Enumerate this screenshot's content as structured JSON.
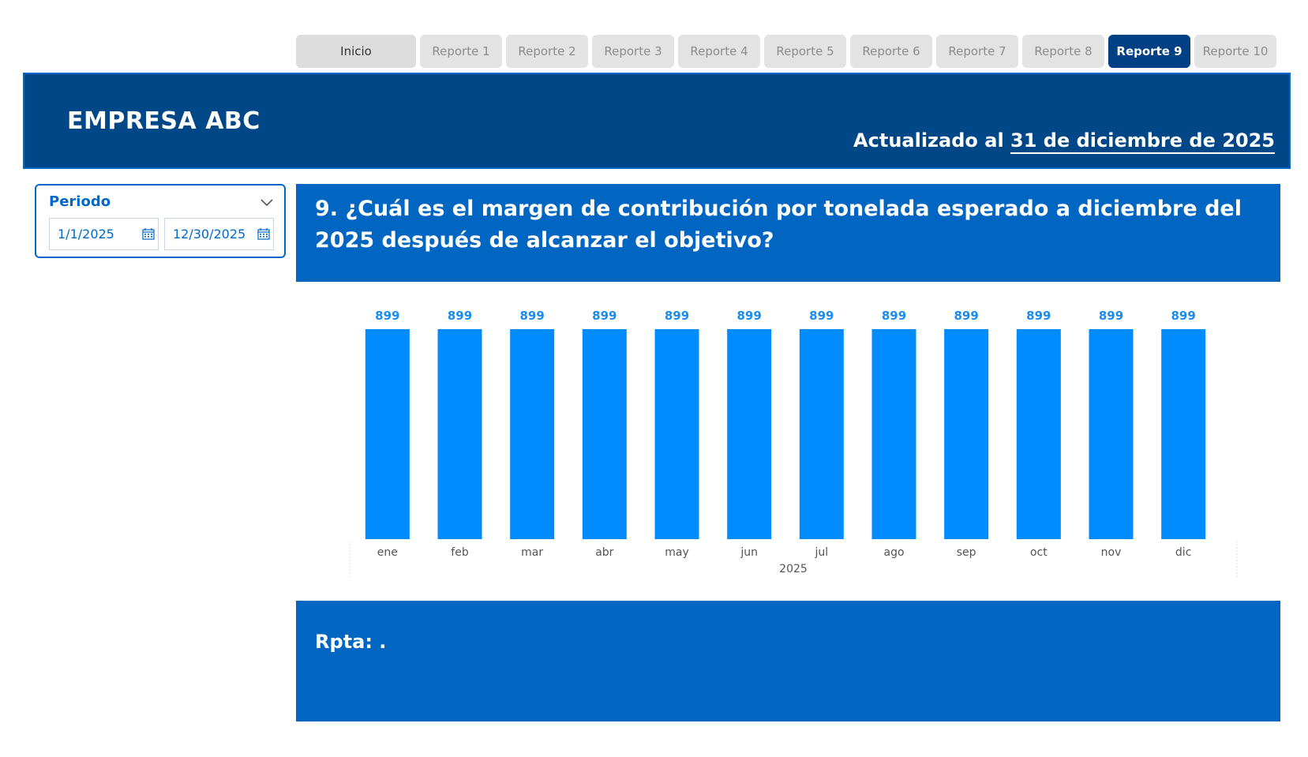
{
  "nav": {
    "tabs": [
      {
        "label": "Inicio",
        "state": "home"
      },
      {
        "label": "Reporte 1",
        "state": ""
      },
      {
        "label": "Reporte 2",
        "state": ""
      },
      {
        "label": "Reporte 3",
        "state": ""
      },
      {
        "label": "Reporte 4",
        "state": ""
      },
      {
        "label": "Reporte 5",
        "state": ""
      },
      {
        "label": "Reporte 6",
        "state": ""
      },
      {
        "label": "Reporte 7",
        "state": ""
      },
      {
        "label": "Reporte 8",
        "state": ""
      },
      {
        "label": "Reporte 9",
        "state": "active"
      },
      {
        "label": "Reporte 10",
        "state": ""
      }
    ]
  },
  "header": {
    "company": "EMPRESA ABC",
    "updated_prefix": "Actualizado al",
    "updated_date": "31 de diciembre de 2025"
  },
  "slicer": {
    "title": "Periodo",
    "start": "1/1/2025",
    "end": "12/30/2025",
    "icons": [
      "chevron-down-icon",
      "calendar-icon"
    ]
  },
  "question": {
    "text": "9. ¿Cuál es el margen de contribución por tonelada esperado a diciembre del 2025 después de alcanzar el objetivo?"
  },
  "answer": {
    "text": "Rpta: ."
  },
  "colors": {
    "bar": "#008cff",
    "label": "#1a8cf0",
    "banner": "#004787",
    "panel": "#0066c2",
    "active_tab": "#004185"
  },
  "chart_data": {
    "type": "bar",
    "categories": [
      "ene",
      "feb",
      "mar",
      "abr",
      "may",
      "jun",
      "jul",
      "ago",
      "sep",
      "oct",
      "nov",
      "dic"
    ],
    "values": [
      899,
      899,
      899,
      899,
      899,
      899,
      899,
      899,
      899,
      899,
      899,
      899
    ],
    "group_label": "2025",
    "ylim": [
      0,
      899
    ],
    "grid": false,
    "data_labels": true
  }
}
